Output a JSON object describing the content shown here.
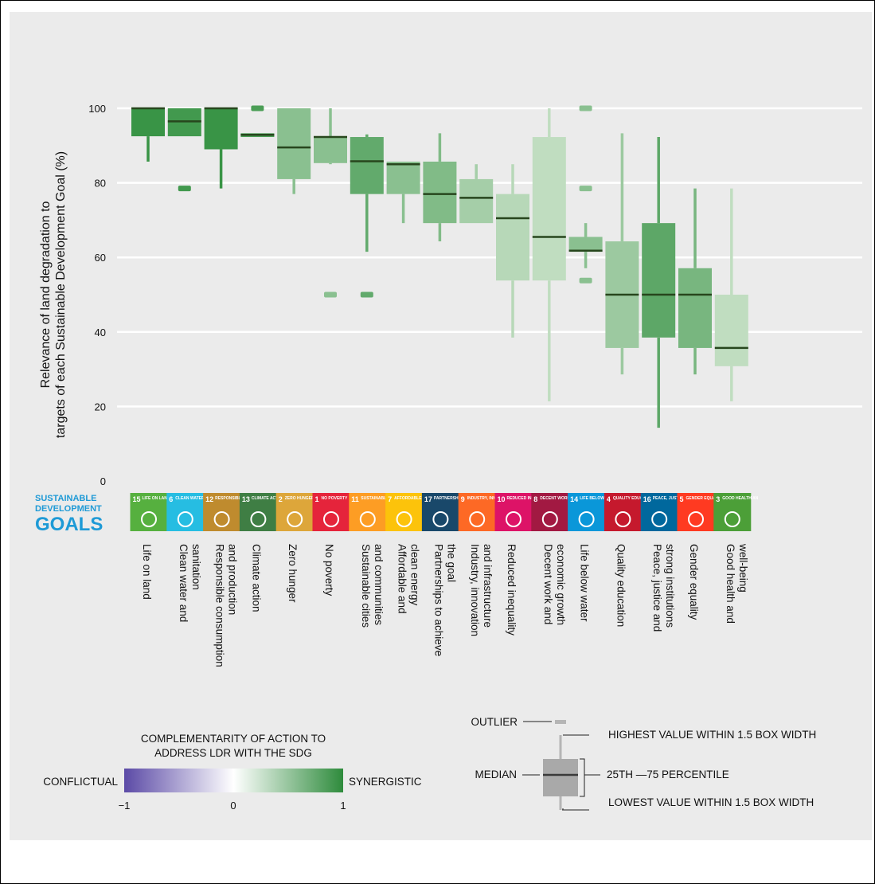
{
  "chart_data": {
    "type": "boxplot",
    "ylabel_line1": "Relevance of land degradation to",
    "ylabel_line2": "targets of each Sustainable Development Goal (%)",
    "ylim": [
      0,
      100
    ],
    "yticks": [
      0,
      20,
      40,
      60,
      80,
      100
    ],
    "grid": true,
    "sdg_brand": [
      "SUSTAINABLE",
      "DEVELOPMENT",
      "GOALS"
    ],
    "boxes": [
      {
        "label": [
          "Life on land"
        ],
        "sdg_num": "15",
        "sdg_name": "LIFE ON LAND",
        "sdg_color": "#56b03f",
        "complementarity": 0.95,
        "q1": 92.5,
        "median": 100,
        "q3": 100,
        "whisker_low": 85.7,
        "whisker_high": 100,
        "outliers": []
      },
      {
        "label": [
          "Clean water and",
          "sanitation"
        ],
        "sdg_num": "6",
        "sdg_name": "CLEAN WATER AND SANITATION",
        "sdg_color": "#26bde2",
        "complementarity": 0.9,
        "q1": 92.5,
        "median": 96.5,
        "q3": 100,
        "whisker_low": 92.5,
        "whisker_high": 100,
        "outliers": [
          78.5
        ]
      },
      {
        "label": [
          "Responsible consumption",
          "and production"
        ],
        "sdg_num": "12",
        "sdg_name": "RESPONSIBLE CONSUMPTION AND PRODUCTION",
        "sdg_color": "#bf8b2e",
        "complementarity": 0.95,
        "q1": 89,
        "median": 100,
        "q3": 100,
        "whisker_low": 78.5,
        "whisker_high": 100,
        "outliers": []
      },
      {
        "label": [
          "Climate action"
        ],
        "sdg_num": "13",
        "sdg_name": "CLIMATE ACTION",
        "sdg_color": "#3f7e44",
        "complementarity": 0.85,
        "q1": 92.3,
        "median": 92.9,
        "q3": 93.3,
        "whisker_low": 92.3,
        "whisker_high": 93.3,
        "outliers": [
          100
        ]
      },
      {
        "label": [
          "Zero hunger"
        ],
        "sdg_num": "2",
        "sdg_name": "ZERO HUNGER",
        "sdg_color": "#dda63a",
        "complementarity": 0.5,
        "q1": 81,
        "median": 89.5,
        "q3": 100,
        "whisker_low": 77,
        "whisker_high": 100,
        "outliers": []
      },
      {
        "label": [
          "No poverty"
        ],
        "sdg_num": "1",
        "sdg_name": "NO POVERTY",
        "sdg_color": "#e5243b",
        "complementarity": 0.5,
        "q1": 85.3,
        "median": 92.3,
        "q3": 92.5,
        "whisker_low": 85,
        "whisker_high": 100,
        "outliers": [
          50
        ]
      },
      {
        "label": [
          "Sustainable cities",
          "and communities"
        ],
        "sdg_num": "11",
        "sdg_name": "SUSTAINABLE CITIES AND COMMUNITIES",
        "sdg_color": "#fd9d24",
        "complementarity": 0.72,
        "q1": 77,
        "median": 85.8,
        "q3": 92.3,
        "whisker_low": 61.5,
        "whisker_high": 93,
        "outliers": [
          50
        ]
      },
      {
        "label": [
          "Affordable and",
          "clean energy"
        ],
        "sdg_num": "7",
        "sdg_name": "AFFORDABLE AND CLEAN ENERGY",
        "sdg_color": "#fcc30b",
        "complementarity": 0.5,
        "q1": 77,
        "median": 85,
        "q3": 85.7,
        "whisker_low": 69.2,
        "whisker_high": 85.7,
        "outliers": []
      },
      {
        "label": [
          "Partnerships to achieve",
          "the goal"
        ],
        "sdg_num": "17",
        "sdg_name": "PARTNERSHIPS FOR THE GOALS",
        "sdg_color": "#19486a",
        "complementarity": 0.55,
        "q1": 69.2,
        "median": 77,
        "q3": 85.7,
        "whisker_low": 64.3,
        "whisker_high": 93.3,
        "outliers": []
      },
      {
        "label": [
          "Industry, innovation",
          "and infrastructure"
        ],
        "sdg_num": "9",
        "sdg_name": "INDUSTRY, INNOVATION AND INFRASTRUCTURE",
        "sdg_color": "#fd6925",
        "complementarity": 0.35,
        "q1": 69.2,
        "median": 76,
        "q3": 81,
        "whisker_low": 69.2,
        "whisker_high": 85,
        "outliers": []
      },
      {
        "label": [
          "Reduced inequality"
        ],
        "sdg_num": "10",
        "sdg_name": "REDUCED INEQUALITIES",
        "sdg_color": "#dd1367",
        "complementarity": 0.25,
        "q1": 53.8,
        "median": 70.5,
        "q3": 77,
        "whisker_low": 38.5,
        "whisker_high": 85,
        "outliers": []
      },
      {
        "label": [
          "Decent work and",
          "economic growth"
        ],
        "sdg_num": "8",
        "sdg_name": "DECENT WORK AND ECONOMIC GROWTH",
        "sdg_color": "#a21942",
        "complementarity": 0.2,
        "q1": 53.8,
        "median": 65.5,
        "q3": 92.3,
        "whisker_low": 21.4,
        "whisker_high": 100,
        "outliers": []
      },
      {
        "label": [
          "Life below water"
        ],
        "sdg_num": "14",
        "sdg_name": "LIFE BELOW WATER",
        "sdg_color": "#0a97d9",
        "complementarity": 0.5,
        "q1": 61.5,
        "median": 61.8,
        "q3": 65.5,
        "whisker_low": 57.1,
        "whisker_high": 69.2,
        "outliers": [
          53.8,
          78.5,
          100
        ]
      },
      {
        "label": [
          "Quality education"
        ],
        "sdg_num": "4",
        "sdg_name": "QUALITY EDUCATION",
        "sdg_color": "#c5192d",
        "complementarity": 0.4,
        "q1": 35.7,
        "median": 50,
        "q3": 64.3,
        "whisker_low": 28.6,
        "whisker_high": 93.3,
        "outliers": []
      },
      {
        "label": [
          "Peace, justice and",
          "strong institutions"
        ],
        "sdg_num": "16",
        "sdg_name": "PEACE, JUSTICE AND STRONG INSTITUTIONS",
        "sdg_color": "#00689d",
        "complementarity": 0.75,
        "q1": 38.5,
        "median": 50,
        "q3": 69.2,
        "whisker_low": 14.3,
        "whisker_high": 92.3,
        "outliers": []
      },
      {
        "label": [
          "Gender equality"
        ],
        "sdg_num": "5",
        "sdg_name": "GENDER EQUALITY",
        "sdg_color": "#ff3a21",
        "complementarity": 0.6,
        "q1": 35.7,
        "median": 50,
        "q3": 57.1,
        "whisker_low": 28.6,
        "whisker_high": 78.5,
        "outliers": []
      },
      {
        "label": [
          "Good health and",
          "well-being"
        ],
        "sdg_num": "3",
        "sdg_name": "GOOD HEALTH AND WELL-BEING",
        "sdg_color": "#4c9f38",
        "complementarity": 0.2,
        "q1": 30.8,
        "median": 35.7,
        "q3": 50,
        "whisker_low": 21.4,
        "whisker_high": 78.5,
        "outliers": []
      }
    ],
    "colorbar": {
      "title_line1": "COMPLEMENTARITY OF ACTION TO",
      "title_line2": "ADDRESS LDR WITH THE SDG",
      "left_label": "CONFLICTUAL",
      "right_label": "SYNERGISTIC",
      "ticks": [
        "−1",
        "0",
        "1"
      ],
      "colors": [
        "#5b4aa6",
        "#ffffff",
        "#2e8b3c"
      ]
    },
    "box_legend": {
      "outlier": "OUTLIER",
      "highest": "HIGHEST VALUE WITHIN 1.5 BOX WIDTH",
      "median": "MEDIAN",
      "percentile": "25TH —75 PERCENTILE",
      "lowest": "LOWEST VALUE WITHIN 1.5 BOX WIDTH"
    }
  }
}
